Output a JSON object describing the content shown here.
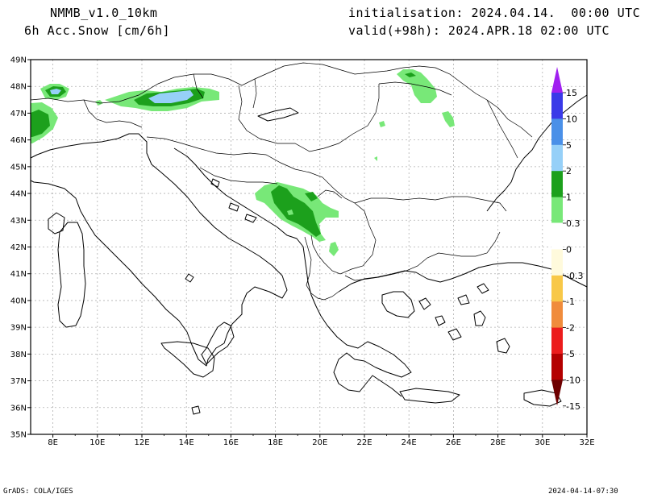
{
  "header": {
    "model": "NMMB_v1.0_10km",
    "variable": "6h Acc.Snow [cm/6h]",
    "init": "initialisation: 2024.04.14.  00:00 UTC",
    "valid": "valid(+98h): 2024.APR.18 02:00 UTC"
  },
  "footer": {
    "credit": "GrADS: COLA/IGES",
    "timestamp": "2024-04-14-07:30"
  },
  "axes": {
    "lat_labels": [
      "49N",
      "48N",
      "47N",
      "46N",
      "45N",
      "44N",
      "43N",
      "42N",
      "41N",
      "40N",
      "39N",
      "38N",
      "37N",
      "36N",
      "35N"
    ],
    "lon_labels": [
      "8E",
      "10E",
      "12E",
      "14E",
      "16E",
      "18E",
      "20E",
      "22E",
      "24E",
      "26E",
      "28E",
      "30E",
      "32E"
    ]
  },
  "colorbar": {
    "labels": [
      "15",
      "10",
      "5",
      "2",
      "1",
      "0.3",
      "0",
      "-0.3",
      "-1",
      "-2",
      "-5",
      "-10",
      "-15"
    ],
    "colors": [
      "#a020f0",
      "#3a3ae8",
      "#4a90e8",
      "#96d0f8",
      "#1ca01c",
      "#78e878",
      "#ffffff",
      "#fffadc",
      "#f8c848",
      "#f08c3c",
      "#ec1c1c",
      "#b40000",
      "#6e0000"
    ]
  },
  "snow_colors": {
    "light": "#78e878",
    "moderate": "#1ca01c",
    "heavy": "#96d0f8"
  }
}
